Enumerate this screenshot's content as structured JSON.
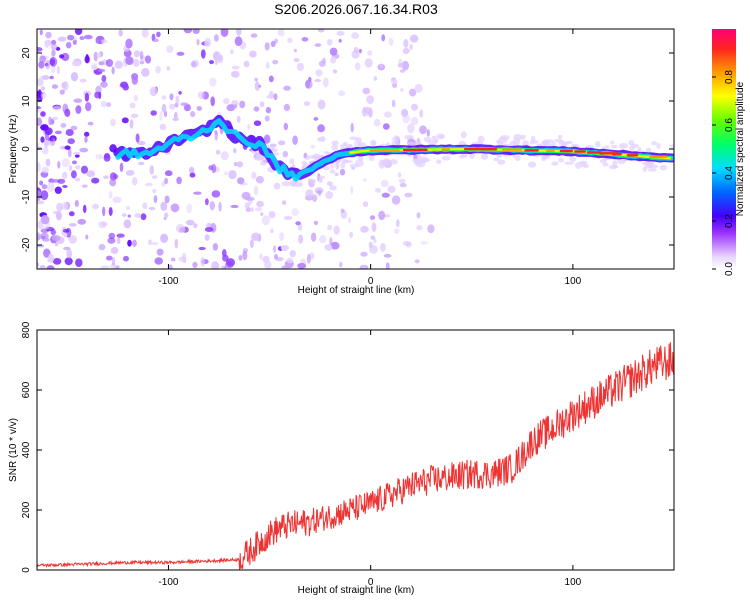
{
  "title": "S206.2026.067.16.34.R03",
  "chart_data": [
    {
      "type": "heatmap",
      "xlabel": "Height of straight line (km)",
      "ylabel": "Frequency (Hz)",
      "xlim": [
        -165,
        150
      ],
      "ylim": [
        -25,
        25
      ],
      "x_ticks": [
        -100,
        0,
        100
      ],
      "y_ticks": [
        -20,
        -10,
        0,
        10,
        20
      ],
      "colorbar": {
        "label": "Normalized spectral amplitude",
        "range": [
          0,
          1
        ],
        "ticks": [
          "0.0",
          "0.2",
          "0.4",
          "0.6",
          "0.8"
        ]
      },
      "ridge": {
        "x": [
          -135,
          -110,
          -95,
          -85,
          -75,
          -65,
          -55,
          -45,
          -35,
          -25,
          -15,
          -5,
          0,
          50,
          100,
          150
        ],
        "freq": [
          -1,
          -1,
          2,
          3,
          6,
          2,
          1,
          -4,
          -6,
          -3,
          -1,
          -0.5,
          -0.3,
          0,
          -0.5,
          -2
        ]
      }
    },
    {
      "type": "line",
      "xlabel": "Height of straight line (km)",
      "ylabel": "SNR (10 * v/v)",
      "xlim": [
        -165,
        150
      ],
      "ylim": [
        0,
        800
      ],
      "x_ticks": [
        -100,
        0,
        100
      ],
      "y_ticks": [
        0,
        200,
        400,
        600,
        800
      ],
      "series": [
        {
          "name": "SNR",
          "color": "#ee3333",
          "x": [
            -165,
            -140,
            -120,
            -100,
            -80,
            -65,
            -60,
            -55,
            -50,
            -45,
            -40,
            -30,
            -20,
            -10,
            0,
            10,
            20,
            30,
            40,
            50,
            60,
            65,
            70,
            75,
            80,
            90,
            100,
            110,
            120,
            130,
            140,
            150
          ],
          "y": [
            15,
            20,
            25,
            25,
            30,
            35,
            60,
            90,
            120,
            140,
            150,
            160,
            180,
            200,
            220,
            250,
            280,
            300,
            310,
            320,
            320,
            330,
            340,
            380,
            430,
            470,
            520,
            560,
            600,
            640,
            680,
            700
          ]
        }
      ]
    }
  ]
}
